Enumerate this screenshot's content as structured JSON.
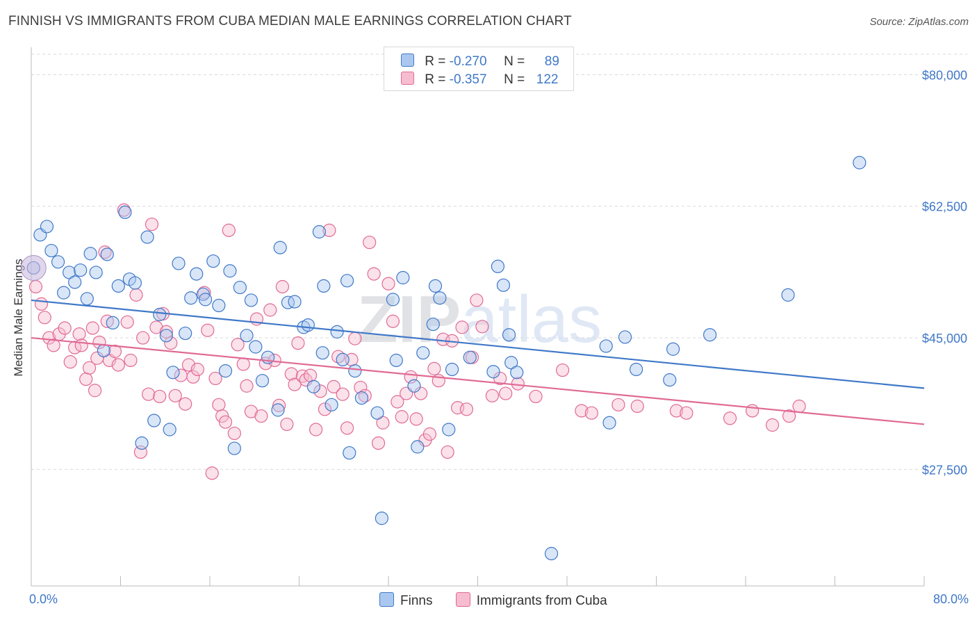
{
  "title": "FINNISH VS IMMIGRANTS FROM CUBA MEDIAN MALE EARNINGS CORRELATION CHART",
  "source": "Source: ZipAtlas.com",
  "watermark": "ZIPatlas",
  "colors": {
    "blue": "#3f78c8",
    "blue_fill": "#aac8ef",
    "pink": "#e06a94",
    "pink_fill": "#f6bcd0",
    "grid": "#d9d9d9"
  },
  "legend": {
    "finns": {
      "r_label": "R =",
      "r_value": "-0.270",
      "n_label": "N =",
      "n_value": "89"
    },
    "cuba": {
      "r_label": "R =",
      "r_value": "-0.357",
      "n_label": "N =",
      "n_value": "122"
    }
  },
  "bottom_legend": {
    "finns": "Finns",
    "cuba": "Immigrants from Cuba"
  },
  "chart_data": {
    "type": "scatter",
    "ylabel": "Median Male Earnings",
    "xlim": [
      0,
      80
    ],
    "ylim": [
      12000,
      83000
    ],
    "x_tick_labels": {
      "min": "0.0%",
      "max": "80.0%"
    },
    "y_ticks": [
      {
        "value": 80000,
        "label": "$80,000"
      },
      {
        "value": 62500,
        "label": "$62,500"
      },
      {
        "value": 45000,
        "label": "$45,000"
      },
      {
        "value": 27500,
        "label": "$27,500"
      }
    ],
    "series": [
      {
        "name": "Finns",
        "color": "#3f78c8",
        "trend": {
          "x": [
            0,
            80
          ],
          "y": [
            50000,
            38300
          ]
        },
        "points": [
          [
            0.2,
            54300
          ],
          [
            0.8,
            58700
          ],
          [
            1.4,
            59800
          ],
          [
            1.8,
            56600
          ],
          [
            2.4,
            55100
          ],
          [
            2.9,
            51000
          ],
          [
            3.4,
            53700
          ],
          [
            3.9,
            52400
          ],
          [
            4.4,
            54000
          ],
          [
            5.0,
            50200
          ],
          [
            5.3,
            56200
          ],
          [
            5.8,
            53700
          ],
          [
            6.5,
            43300
          ],
          [
            6.8,
            56100
          ],
          [
            7.3,
            47000
          ],
          [
            7.8,
            51900
          ],
          [
            8.4,
            61700
          ],
          [
            8.8,
            52800
          ],
          [
            9.3,
            52300
          ],
          [
            9.9,
            31000
          ],
          [
            10.4,
            58400
          ],
          [
            11.0,
            34000
          ],
          [
            11.5,
            48100
          ],
          [
            12.1,
            45300
          ],
          [
            12.4,
            32800
          ],
          [
            12.7,
            40400
          ],
          [
            13.2,
            54900
          ],
          [
            13.8,
            45600
          ],
          [
            14.3,
            50300
          ],
          [
            14.8,
            53500
          ],
          [
            15.4,
            50800
          ],
          [
            15.6,
            50100
          ],
          [
            16.3,
            55200
          ],
          [
            16.8,
            49300
          ],
          [
            17.4,
            40600
          ],
          [
            17.8,
            53900
          ],
          [
            18.2,
            30300
          ],
          [
            18.7,
            51700
          ],
          [
            19.3,
            45300
          ],
          [
            19.7,
            50000
          ],
          [
            20.1,
            43800
          ],
          [
            20.7,
            39300
          ],
          [
            21.2,
            42400
          ],
          [
            22.1,
            35400
          ],
          [
            22.3,
            57000
          ],
          [
            23.0,
            49700
          ],
          [
            23.6,
            49800
          ],
          [
            24.4,
            46400
          ],
          [
            24.8,
            46700
          ],
          [
            25.3,
            38500
          ],
          [
            25.8,
            59100
          ],
          [
            26.2,
            51900
          ],
          [
            26.1,
            43000
          ],
          [
            26.9,
            36100
          ],
          [
            27.4,
            45800
          ],
          [
            27.9,
            42100
          ],
          [
            28.3,
            52600
          ],
          [
            28.5,
            29700
          ],
          [
            29.0,
            40600
          ],
          [
            29.6,
            37000
          ],
          [
            31.0,
            35000
          ],
          [
            31.4,
            21000
          ],
          [
            32.4,
            50100
          ],
          [
            32.7,
            42000
          ],
          [
            33.3,
            53000
          ],
          [
            34.3,
            38600
          ],
          [
            34.6,
            30500
          ],
          [
            35.1,
            43000
          ],
          [
            36.0,
            46800
          ],
          [
            36.2,
            51900
          ],
          [
            36.6,
            50300
          ],
          [
            37.4,
            32800
          ],
          [
            37.7,
            40800
          ],
          [
            39.3,
            42400
          ],
          [
            41.4,
            40500
          ],
          [
            41.8,
            54500
          ],
          [
            42.3,
            52000
          ],
          [
            42.8,
            45400
          ],
          [
            43.0,
            41700
          ],
          [
            43.5,
            40400
          ],
          [
            46.6,
            16300
          ],
          [
            51.5,
            43900
          ],
          [
            51.8,
            33700
          ],
          [
            53.2,
            45100
          ],
          [
            54.2,
            40800
          ],
          [
            57.2,
            39400
          ],
          [
            57.5,
            43500
          ],
          [
            60.8,
            45400
          ],
          [
            67.8,
            50700
          ],
          [
            74.2,
            68300
          ]
        ]
      },
      {
        "name": "Immigrants from Cuba",
        "color": "#e06a94",
        "trend": {
          "x": [
            0,
            80
          ],
          "y": [
            45000,
            33500
          ]
        },
        "points": [
          [
            0.4,
            51800
          ],
          [
            0.9,
            49500
          ],
          [
            1.2,
            47700
          ],
          [
            1.6,
            45000
          ],
          [
            2.0,
            44000
          ],
          [
            2.5,
            45500
          ],
          [
            3.0,
            46300
          ],
          [
            3.5,
            41800
          ],
          [
            3.9,
            43700
          ],
          [
            4.3,
            45500
          ],
          [
            4.5,
            44000
          ],
          [
            4.9,
            39500
          ],
          [
            5.2,
            41000
          ],
          [
            5.5,
            46300
          ],
          [
            5.7,
            38000
          ],
          [
            5.9,
            42300
          ],
          [
            6.1,
            44400
          ],
          [
            6.6,
            56400
          ],
          [
            6.8,
            47200
          ],
          [
            7.0,
            42000
          ],
          [
            7.5,
            43200
          ],
          [
            7.8,
            41400
          ],
          [
            8.3,
            62000
          ],
          [
            8.6,
            47100
          ],
          [
            8.9,
            42000
          ],
          [
            9.4,
            50700
          ],
          [
            9.8,
            29800
          ],
          [
            10.0,
            45000
          ],
          [
            10.5,
            37500
          ],
          [
            10.8,
            60100
          ],
          [
            11.2,
            46400
          ],
          [
            11.5,
            37200
          ],
          [
            11.8,
            48200
          ],
          [
            12.1,
            45800
          ],
          [
            12.5,
            44300
          ],
          [
            12.9,
            37300
          ],
          [
            13.4,
            40000
          ],
          [
            13.8,
            36200
          ],
          [
            14.1,
            41400
          ],
          [
            14.5,
            39800
          ],
          [
            14.9,
            40800
          ],
          [
            15.5,
            51000
          ],
          [
            15.8,
            46000
          ],
          [
            16.2,
            27000
          ],
          [
            16.5,
            39600
          ],
          [
            16.8,
            36100
          ],
          [
            17.1,
            34600
          ],
          [
            17.4,
            33800
          ],
          [
            17.7,
            59300
          ],
          [
            18.2,
            32300
          ],
          [
            18.5,
            44100
          ],
          [
            19.0,
            41500
          ],
          [
            19.3,
            38600
          ],
          [
            19.7,
            35200
          ],
          [
            20.2,
            47500
          ],
          [
            20.6,
            34600
          ],
          [
            21.0,
            41600
          ],
          [
            21.4,
            48700
          ],
          [
            21.8,
            42000
          ],
          [
            22.2,
            36000
          ],
          [
            22.5,
            51800
          ],
          [
            22.9,
            33500
          ],
          [
            23.3,
            40200
          ],
          [
            23.6,
            38800
          ],
          [
            23.9,
            44300
          ],
          [
            24.3,
            39900
          ],
          [
            24.6,
            39400
          ],
          [
            25.0,
            40000
          ],
          [
            25.5,
            32800
          ],
          [
            25.9,
            37900
          ],
          [
            26.3,
            35500
          ],
          [
            26.7,
            59300
          ],
          [
            27.1,
            38500
          ],
          [
            27.5,
            42500
          ],
          [
            27.9,
            37500
          ],
          [
            28.3,
            33000
          ],
          [
            28.7,
            42100
          ],
          [
            29.0,
            44900
          ],
          [
            29.5,
            38400
          ],
          [
            29.9,
            37300
          ],
          [
            30.3,
            57700
          ],
          [
            30.7,
            53500
          ],
          [
            31.1,
            31000
          ],
          [
            31.5,
            33700
          ],
          [
            32.0,
            52200
          ],
          [
            32.4,
            47200
          ],
          [
            32.8,
            36500
          ],
          [
            33.2,
            34500
          ],
          [
            33.6,
            37600
          ],
          [
            34.0,
            39800
          ],
          [
            34.5,
            34200
          ],
          [
            34.9,
            37600
          ],
          [
            35.3,
            31400
          ],
          [
            35.7,
            32200
          ],
          [
            36.1,
            40900
          ],
          [
            36.5,
            39300
          ],
          [
            36.9,
            44800
          ],
          [
            37.3,
            29800
          ],
          [
            37.7,
            44600
          ],
          [
            38.2,
            35700
          ],
          [
            38.6,
            46400
          ],
          [
            39.0,
            35500
          ],
          [
            39.5,
            42400
          ],
          [
            39.9,
            50000
          ],
          [
            40.4,
            46500
          ],
          [
            41.3,
            37300
          ],
          [
            42.0,
            39600
          ],
          [
            42.5,
            37600
          ],
          [
            43.6,
            38900
          ],
          [
            45.2,
            37200
          ],
          [
            47.6,
            40700
          ],
          [
            49.3,
            35300
          ],
          [
            50.2,
            35000
          ],
          [
            52.6,
            36100
          ],
          [
            54.3,
            35900
          ],
          [
            57.8,
            35300
          ],
          [
            58.7,
            35000
          ],
          [
            62.6,
            34300
          ],
          [
            64.6,
            35300
          ],
          [
            66.4,
            33400
          ],
          [
            67.9,
            34600
          ],
          [
            68.8,
            35900
          ]
        ]
      }
    ]
  }
}
